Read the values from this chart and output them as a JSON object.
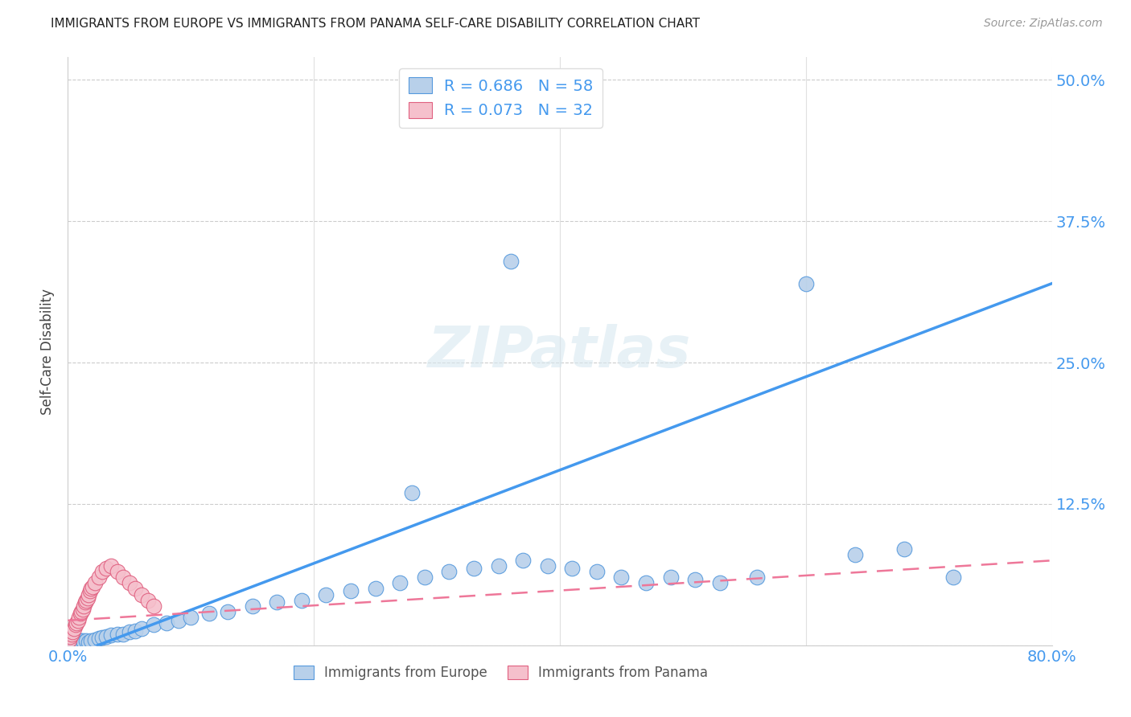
{
  "title": "IMMIGRANTS FROM EUROPE VS IMMIGRANTS FROM PANAMA SELF-CARE DISABILITY CORRELATION CHART",
  "source": "Source: ZipAtlas.com",
  "ylabel": "Self-Care Disability",
  "xlim": [
    0.0,
    0.8
  ],
  "ylim": [
    0.0,
    0.52
  ],
  "ytick_vals": [
    0.0,
    0.125,
    0.25,
    0.375,
    0.5
  ],
  "ytick_labels": [
    "",
    "12.5%",
    "25.0%",
    "37.5%",
    "50.0%"
  ],
  "xtick_vals": [
    0.0,
    0.2,
    0.4,
    0.6,
    0.8
  ],
  "xtick_labels": [
    "0.0%",
    "",
    "",
    "",
    "80.0%"
  ],
  "r_europe": 0.686,
  "n_europe": 58,
  "r_panama": 0.073,
  "n_panama": 32,
  "europe_fill": "#b8d0ea",
  "europe_edge": "#5599dd",
  "panama_fill": "#f5c0cc",
  "panama_edge": "#e06080",
  "europe_line_color": "#4499ee",
  "panama_line_color": "#ee7799",
  "grid_color": "#cccccc",
  "tick_color": "#4499ee",
  "watermark": "ZIPatlas",
  "europe_x": [
    0.002,
    0.003,
    0.004,
    0.005,
    0.006,
    0.007,
    0.008,
    0.009,
    0.01,
    0.011,
    0.012,
    0.013,
    0.015,
    0.017,
    0.019,
    0.022,
    0.025,
    0.028,
    0.031,
    0.035,
    0.04,
    0.045,
    0.05,
    0.055,
    0.06,
    0.07,
    0.08,
    0.09,
    0.1,
    0.115,
    0.13,
    0.15,
    0.17,
    0.19,
    0.21,
    0.23,
    0.25,
    0.27,
    0.29,
    0.31,
    0.33,
    0.35,
    0.37,
    0.39,
    0.41,
    0.43,
    0.45,
    0.47,
    0.49,
    0.51,
    0.53,
    0.56,
    0.6,
    0.64,
    0.68,
    0.72,
    0.28,
    0.36
  ],
  "europe_y": [
    0.003,
    0.004,
    0.003,
    0.004,
    0.003,
    0.003,
    0.004,
    0.003,
    0.004,
    0.003,
    0.004,
    0.003,
    0.004,
    0.003,
    0.004,
    0.005,
    0.006,
    0.007,
    0.008,
    0.009,
    0.01,
    0.01,
    0.012,
    0.013,
    0.015,
    0.018,
    0.02,
    0.022,
    0.025,
    0.028,
    0.03,
    0.035,
    0.038,
    0.04,
    0.045,
    0.048,
    0.05,
    0.055,
    0.06,
    0.065,
    0.068,
    0.07,
    0.075,
    0.07,
    0.068,
    0.065,
    0.06,
    0.055,
    0.06,
    0.058,
    0.055,
    0.06,
    0.32,
    0.08,
    0.085,
    0.06,
    0.135,
    0.34
  ],
  "panama_x": [
    0.001,
    0.002,
    0.003,
    0.004,
    0.005,
    0.006,
    0.007,
    0.008,
    0.009,
    0.01,
    0.011,
    0.012,
    0.013,
    0.014,
    0.015,
    0.016,
    0.017,
    0.018,
    0.019,
    0.02,
    0.022,
    0.025,
    0.028,
    0.031,
    0.035,
    0.04,
    0.045,
    0.05,
    0.055,
    0.06,
    0.065,
    0.07
  ],
  "panama_y": [
    0.005,
    0.008,
    0.01,
    0.012,
    0.015,
    0.018,
    0.02,
    0.022,
    0.025,
    0.028,
    0.03,
    0.032,
    0.035,
    0.038,
    0.04,
    0.042,
    0.045,
    0.048,
    0.05,
    0.052,
    0.055,
    0.06,
    0.065,
    0.068,
    0.07,
    0.065,
    0.06,
    0.055,
    0.05,
    0.045,
    0.04,
    0.035
  ],
  "eur_line_x": [
    0.0,
    0.8
  ],
  "eur_line_y": [
    -0.01,
    0.32
  ],
  "pan_line_x": [
    0.0,
    0.8
  ],
  "pan_line_y": [
    0.022,
    0.075
  ]
}
